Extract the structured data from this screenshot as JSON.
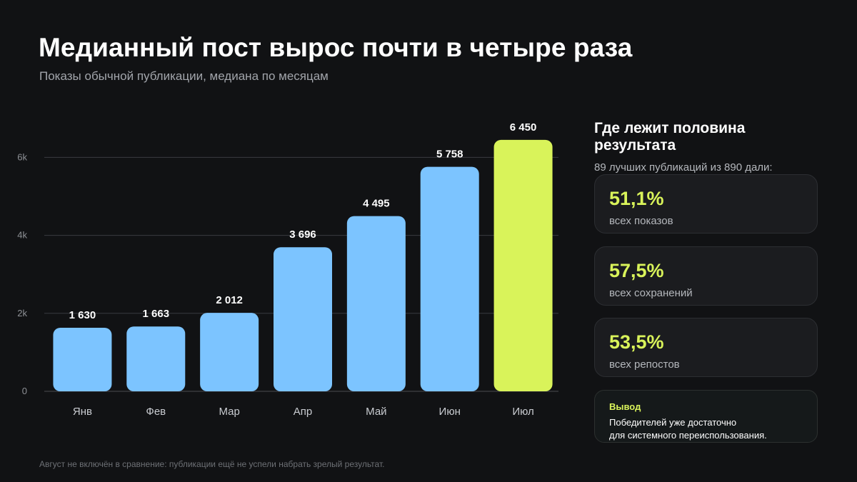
{
  "header": {
    "title": "Медианный пост вырос почти в четыре раза",
    "subtitle": "Показы обычной публикации, медиана по месяцам"
  },
  "chart_data": {
    "type": "bar",
    "categories": [
      "Янв",
      "Фев",
      "Мар",
      "Апр",
      "Май",
      "Июн",
      "Июл"
    ],
    "values": [
      1630,
      1663,
      2012,
      3696,
      4495,
      5758,
      6450
    ],
    "value_labels": [
      "1 630",
      "1 663",
      "2 012",
      "3 696",
      "4 495",
      "5 758",
      "6 450"
    ],
    "yticks": [
      0,
      2000,
      4000,
      6000
    ],
    "ytick_labels": [
      "0",
      "2k",
      "4k",
      "6k"
    ],
    "ylim": [
      0,
      6450
    ],
    "grid": true,
    "title": "",
    "xlabel": "",
    "ylabel": "",
    "colors": {
      "default": "#7cc4ff",
      "highlight": "#d9f35a",
      "highlight_category": "Июл"
    }
  },
  "sidebar": {
    "title": "Где лежит половина результата",
    "subtitle": "89 лучших публикаций из 890 дали:",
    "stats": [
      {
        "value": "51,1%",
        "label": "всех показов"
      },
      {
        "value": "57,5%",
        "label": "всех сохранений"
      },
      {
        "value": "53,5%",
        "label": "всех репостов"
      }
    ],
    "conclusion": {
      "title": "Вывод",
      "line1": "Победителей уже достаточно",
      "line2": "для системного переиспользования."
    }
  },
  "footnote": "Август не включён в сравнение: публикации ещё не успели набрать зрелый результат.",
  "colors": {
    "background": "#111214",
    "accent": "#d9f35a",
    "bar": "#7cc4ff"
  }
}
